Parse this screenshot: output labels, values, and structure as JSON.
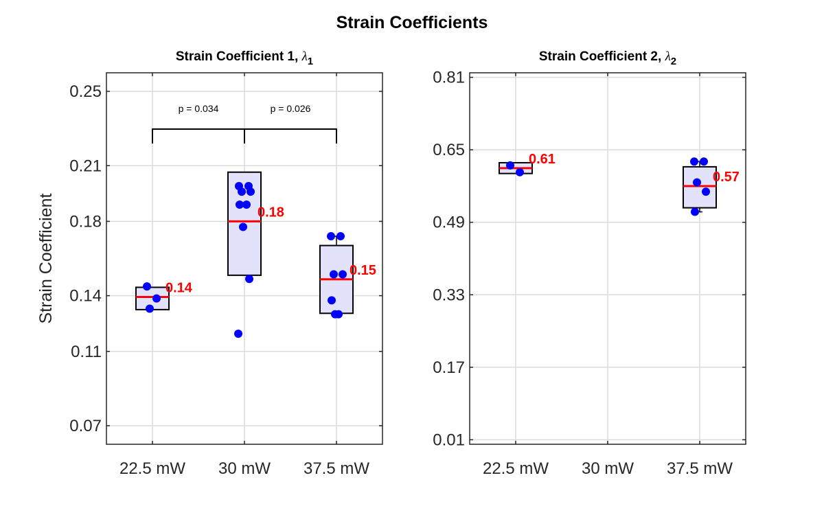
{
  "figure_title": "Strain Coefficients",
  "colors": {
    "box_fill": "#e2e2fb",
    "box_edge": "#000000",
    "median": "#ff0000",
    "points": "#0000ff",
    "median_label": "#ff0000",
    "grid": "#dcdcdc"
  },
  "chart_data": [
    {
      "type": "box",
      "title": "Strain Coefficient 1, ",
      "title_symbol": "λ",
      "title_subscript": "1",
      "ylabel": "Strain Coefficient",
      "xlabel": "",
      "categories": [
        "22.5 mW",
        "30 mW",
        "37.5 mW"
      ],
      "yticks": [
        "0.07",
        "0.11",
        "0.14",
        "0.18",
        "0.21",
        "0.25"
      ],
      "ylim": [
        0.06,
        0.26
      ],
      "grid": true,
      "boxes": [
        {
          "category": "22.5 mW",
          "q1": 0.1325,
          "median": 0.1393,
          "q3": 0.1445,
          "whisker_low": 0.1325,
          "whisker_high": 0.1445,
          "median_label": "0.14",
          "points": [
            0.145,
            0.1385,
            0.133
          ]
        },
        {
          "category": "30 mW",
          "q1": 0.151,
          "median": 0.18,
          "q3": 0.2065,
          "whisker_low": 0.151,
          "whisker_high": 0.2065,
          "median_label": "0.18",
          "points": [
            0.199,
            0.199,
            0.196,
            0.196,
            0.189,
            0.189,
            0.177,
            0.149,
            0.1195
          ]
        },
        {
          "category": "37.5 mW",
          "q1": 0.1305,
          "median": 0.1488,
          "q3": 0.167,
          "whisker_low": 0.13,
          "whisker_high": 0.172,
          "median_label": "0.15",
          "points": [
            0.172,
            0.172,
            0.1515,
            0.1515,
            0.1375,
            0.13,
            0.13
          ]
        }
      ],
      "significance": [
        {
          "from": "22.5 mW",
          "to": "30 mW",
          "label": "p = 0.034"
        },
        {
          "from": "30 mW",
          "to": "37.5 mW",
          "label": "p = 0.026"
        }
      ]
    },
    {
      "type": "box",
      "title": "Strain Coefficient 2, ",
      "title_symbol": "λ",
      "title_subscript": "2",
      "ylabel": "",
      "xlabel": "",
      "categories": [
        "22.5 mW",
        "30 mW",
        "37.5 mW"
      ],
      "yticks": [
        "0.01",
        "0.17",
        "0.33",
        "0.49",
        "0.65",
        "0.81"
      ],
      "ylim": [
        0.0,
        0.82
      ],
      "grid": true,
      "boxes": [
        {
          "category": "22.5 mW",
          "q1": 0.5977,
          "median": 0.6096,
          "q3": 0.6215,
          "whisker_low": 0.5977,
          "whisker_high": 0.6215,
          "median_label": "0.61",
          "points": [
            0.6155,
            0.6005
          ]
        },
        {
          "category": "30 mW",
          "q1": null,
          "median": null,
          "q3": null,
          "whisker_low": null,
          "whisker_high": null,
          "median_label": "",
          "points": []
        },
        {
          "category": "37.5 mW",
          "q1": 0.522,
          "median": 0.57,
          "q3": 0.6125,
          "whisker_low": 0.513,
          "whisker_high": 0.624,
          "median_label": "0.57",
          "points": [
            0.624,
            0.624,
            0.578,
            0.5575,
            0.513
          ]
        }
      ],
      "significance": []
    }
  ]
}
